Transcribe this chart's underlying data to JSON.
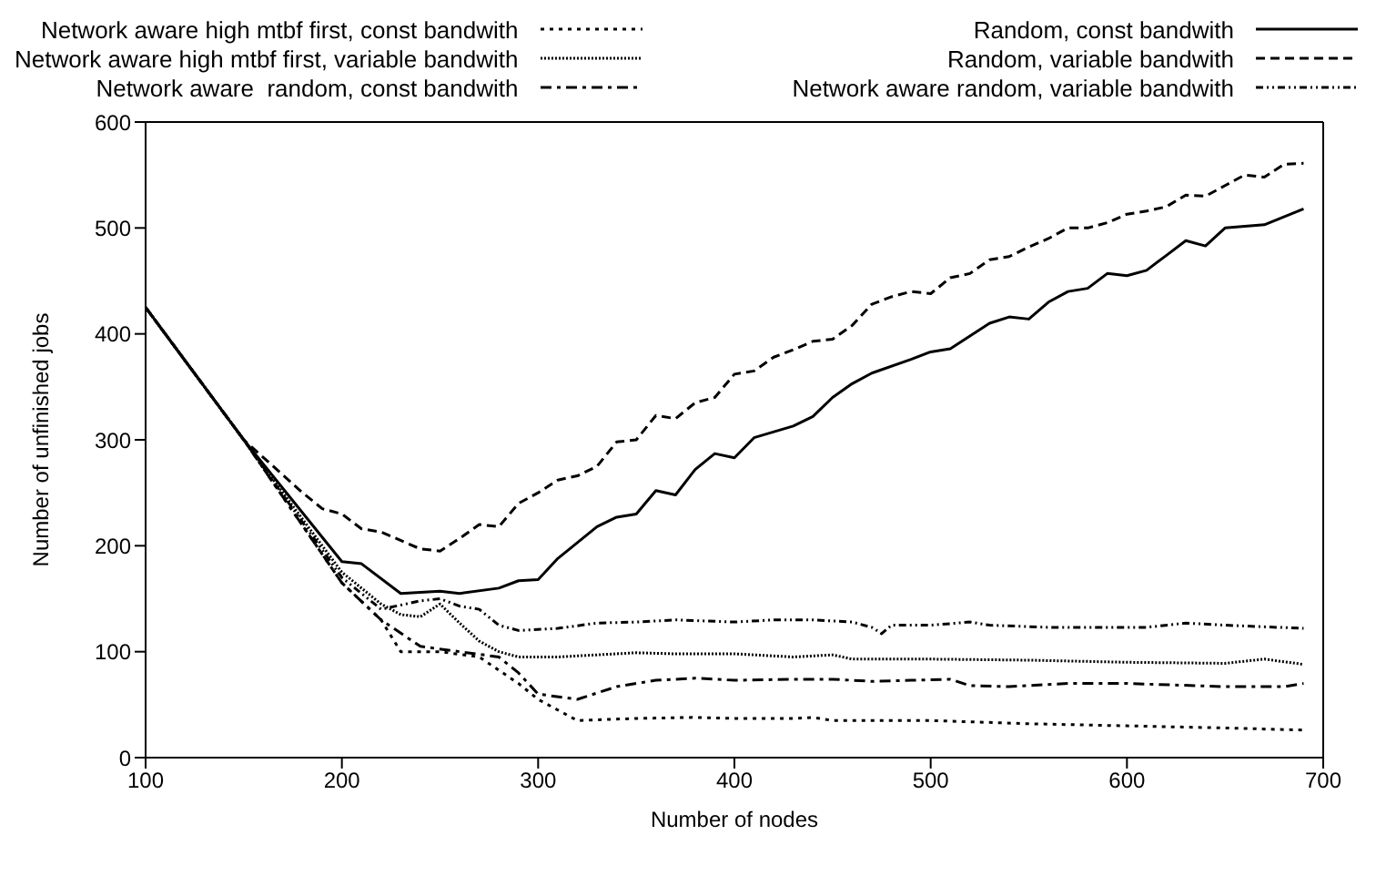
{
  "chart_data": {
    "type": "line",
    "xlabel": "Number of nodes",
    "ylabel": "Number of unfinished jobs",
    "xlim": [
      100,
      700
    ],
    "ylim": [
      0,
      600
    ],
    "xticks": [
      100,
      200,
      300,
      400,
      500,
      600,
      700
    ],
    "yticks": [
      0,
      100,
      200,
      300,
      400,
      500,
      600
    ],
    "grid": false,
    "legend": "top",
    "marker": "none",
    "series": [
      {
        "name": "Network aware high mtbf first, const bandwith",
        "color": "#000000",
        "line_style": "dotted",
        "x": [
          100,
          150,
          200,
          220,
          230,
          250,
          270,
          290,
          300,
          320,
          350,
          380,
          400,
          430,
          440,
          450,
          500,
          550,
          600,
          650,
          690
        ],
        "values": [
          425,
          300,
          165,
          130,
          100,
          100,
          95,
          70,
          55,
          35,
          37,
          38,
          37,
          37,
          38,
          35,
          35,
          32,
          30,
          28,
          26
        ]
      },
      {
        "name": "Network aware high mtbf first, variable bandwith",
        "color": "#000000",
        "line_style": "densely dotted",
        "x": [
          100,
          150,
          200,
          220,
          230,
          240,
          250,
          260,
          270,
          280,
          290,
          310,
          330,
          350,
          370,
          400,
          430,
          450,
          460,
          500,
          550,
          600,
          650,
          670,
          690
        ],
        "values": [
          425,
          300,
          175,
          145,
          135,
          133,
          145,
          127,
          110,
          100,
          95,
          95,
          97,
          99,
          98,
          98,
          95,
          97,
          93,
          93,
          92,
          90,
          89,
          93,
          88
        ]
      },
      {
        "name": "Network aware  random, const bandwith",
        "color": "#000000",
        "line_style": "dashdot",
        "x": [
          100,
          150,
          200,
          220,
          240,
          260,
          280,
          290,
          300,
          320,
          340,
          360,
          380,
          400,
          430,
          450,
          470,
          490,
          510,
          520,
          540,
          570,
          600,
          650,
          680,
          690
        ],
        "values": [
          425,
          300,
          165,
          130,
          105,
          100,
          95,
          80,
          60,
          55,
          67,
          73,
          75,
          73,
          74,
          74,
          72,
          73,
          74,
          68,
          67,
          70,
          70,
          67,
          67,
          70
        ]
      },
      {
        "name": "Random, const bandwith",
        "color": "#000000",
        "line_style": "solid",
        "x": [
          100,
          150,
          200,
          210,
          230,
          250,
          260,
          280,
          290,
          300,
          310,
          320,
          330,
          340,
          350,
          360,
          370,
          380,
          390,
          400,
          410,
          430,
          440,
          450,
          460,
          470,
          490,
          500,
          510,
          520,
          530,
          540,
          550,
          560,
          570,
          580,
          590,
          600,
          610,
          620,
          630,
          640,
          650,
          670,
          690
        ],
        "values": [
          425,
          300,
          185,
          183,
          155,
          157,
          155,
          160,
          167,
          168,
          188,
          203,
          218,
          227,
          230,
          252,
          248,
          272,
          287,
          283,
          302,
          313,
          322,
          340,
          353,
          363,
          376,
          383,
          386,
          398,
          410,
          416,
          414,
          430,
          440,
          443,
          457,
          455,
          460,
          474,
          488,
          483,
          500,
          503,
          518
        ]
      },
      {
        "name": "Random, variable bandwith",
        "color": "#000000",
        "line_style": "dashed",
        "x": [
          100,
          150,
          180,
          190,
          200,
          210,
          220,
          240,
          250,
          260,
          270,
          280,
          290,
          300,
          310,
          320,
          330,
          340,
          350,
          360,
          370,
          380,
          390,
          400,
          410,
          420,
          430,
          440,
          450,
          460,
          470,
          480,
          490,
          500,
          510,
          520,
          530,
          540,
          550,
          560,
          570,
          580,
          590,
          600,
          610,
          620,
          630,
          640,
          650,
          660,
          670,
          680,
          690
        ],
        "values": [
          425,
          300,
          250,
          235,
          230,
          216,
          213,
          197,
          195,
          207,
          220,
          218,
          240,
          250,
          262,
          266,
          275,
          298,
          300,
          323,
          320,
          335,
          340,
          362,
          365,
          378,
          385,
          393,
          395,
          408,
          428,
          435,
          440,
          438,
          453,
          457,
          470,
          473,
          482,
          490,
          500,
          500,
          505,
          513,
          516,
          520,
          531,
          530,
          540,
          550,
          548,
          560,
          561
        ]
      },
      {
        "name": "Network aware random, variable bandwith",
        "color": "#000000",
        "line_style": "dashdotdot",
        "x": [
          100,
          150,
          200,
          220,
          240,
          250,
          260,
          270,
          280,
          290,
          310,
          330,
          350,
          370,
          400,
          420,
          440,
          460,
          470,
          475,
          480,
          500,
          520,
          530,
          560,
          590,
          610,
          630,
          650,
          690
        ],
        "values": [
          425,
          300,
          170,
          140,
          148,
          150,
          143,
          140,
          125,
          120,
          122,
          127,
          128,
          130,
          128,
          130,
          130,
          128,
          123,
          117,
          125,
          125,
          128,
          125,
          123,
          123,
          123,
          127,
          125,
          122
        ]
      }
    ]
  }
}
